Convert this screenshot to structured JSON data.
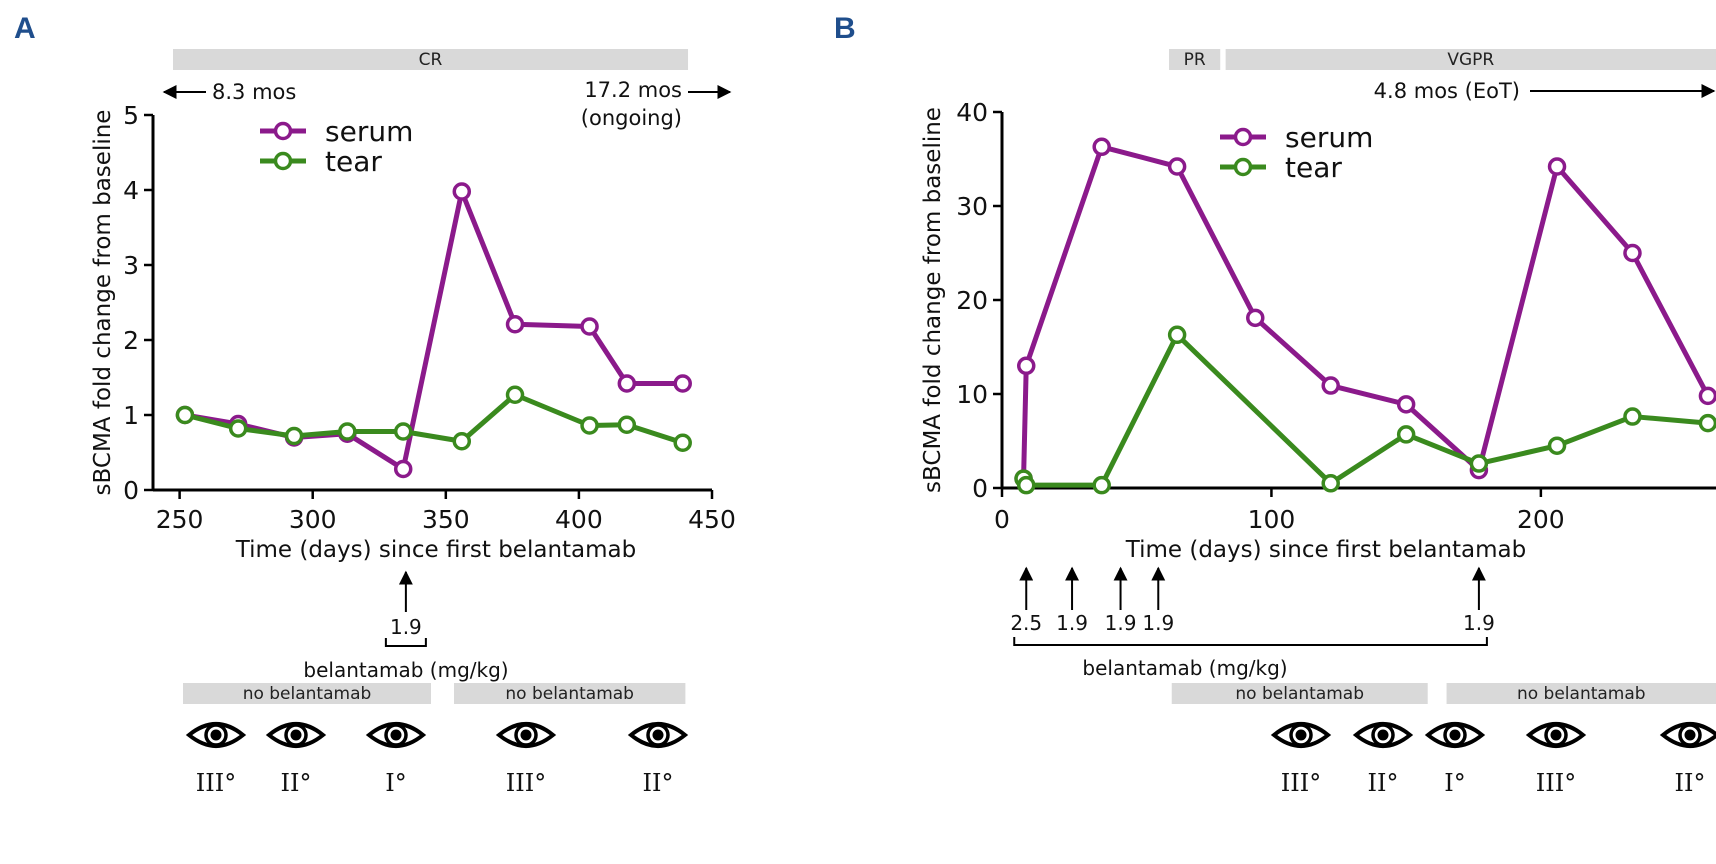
{
  "colors": {
    "serum": "#8b1a8b",
    "tear": "#3a8a1e",
    "panel_letter": "#1f4e8c",
    "bar": "#d9d9d9"
  },
  "chart_data": [
    {
      "panel": "A",
      "type": "line",
      "xlabel": "Time (days) since first belantamab",
      "ylabel": "sBCMA fold change from baseline",
      "xlim": [
        240,
        450
      ],
      "ylim": [
        0,
        5
      ],
      "xticks": [
        250,
        300,
        350,
        400,
        450
      ],
      "yticks": [
        0,
        1,
        2,
        3,
        4,
        5
      ],
      "legend": "top-left",
      "grid": false,
      "series": [
        {
          "name": "serum",
          "x": [
            252,
            272,
            293,
            313,
            334,
            356,
            376,
            404,
            418,
            439
          ],
          "values": [
            1.0,
            0.88,
            0.7,
            0.75,
            0.28,
            3.98,
            2.21,
            2.18,
            1.42,
            1.42
          ]
        },
        {
          "name": "tear",
          "x": [
            252,
            272,
            293,
            313,
            334,
            356,
            376,
            404,
            418,
            439
          ],
          "values": [
            1.0,
            0.82,
            0.72,
            0.78,
            0.78,
            0.65,
            1.27,
            0.86,
            0.87,
            0.63
          ]
        }
      ],
      "response_bars": [
        {
          "label": "CR",
          "start": 240,
          "end": 441
        }
      ],
      "left_note": "8.3 mos",
      "right_note": [
        "17.2 mos",
        "(ongoing)"
      ],
      "doses": [
        {
          "day": 335,
          "label": "1.9"
        }
      ],
      "dose_caption": "belantamab (mg/kg)",
      "no_belantamab_bars": [
        {
          "label": "no belantamab",
          "start": 240,
          "end": 325
        },
        {
          "label": "no belantamab",
          "start": 331,
          "end": 440
        }
      ],
      "eye_grades": [
        {
          "day": 257,
          "grade": "III°"
        },
        {
          "day": 284,
          "grade": "II°"
        },
        {
          "day": 318,
          "grade": "I°"
        },
        {
          "day": 367,
          "grade": "III°"
        },
        {
          "day": 413,
          "grade": "II°"
        }
      ]
    },
    {
      "panel": "B",
      "type": "line",
      "xlabel": "Time (days) since first belantamab",
      "ylabel": "sBCMA fold change from baseline",
      "xlim": [
        0,
        265
      ],
      "ylim": [
        0,
        40
      ],
      "xticks": [
        0,
        100,
        200
      ],
      "yticks": [
        0,
        10,
        20,
        30,
        40
      ],
      "legend": "top-right",
      "grid": false,
      "series": [
        {
          "name": "serum",
          "x": [
            8,
            9,
            37,
            65,
            94,
            122,
            150,
            177,
            206,
            234,
            262
          ],
          "values": [
            1.0,
            13.0,
            36.3,
            34.2,
            18.1,
            10.9,
            8.9,
            1.9,
            34.2,
            25.0,
            9.8
          ]
        },
        {
          "name": "tear",
          "x": [
            8,
            9,
            37,
            65,
            122,
            150,
            177,
            206,
            234,
            262
          ],
          "values": [
            1.0,
            0.3,
            0.3,
            16.3,
            0.5,
            5.7,
            2.6,
            4.5,
            7.6,
            6.9
          ]
        }
      ],
      "response_bars": [
        {
          "label": "PR",
          "start": 62,
          "end": 81
        },
        {
          "label": "VGPR",
          "start": 83,
          "end": 270
        }
      ],
      "right_note": [
        "4.8 mos (EoT)"
      ],
      "doses": [
        {
          "day": 9,
          "label": "2.5"
        },
        {
          "day": 26,
          "label": "1.9"
        },
        {
          "day": 44,
          "label": "1.9"
        },
        {
          "day": 58,
          "label": "1.9"
        },
        {
          "day": 177,
          "label": "1.9"
        }
      ],
      "dose_caption": "belantamab (mg/kg)",
      "no_belantamab_bars": [
        {
          "label": "no belantamab",
          "start": 63,
          "end": 158
        },
        {
          "label": "no belantamab",
          "start": 165,
          "end": 270
        }
      ],
      "eye_grades": [
        {
          "day": 74,
          "grade": "III°"
        },
        {
          "day": 102,
          "grade": "II°"
        },
        {
          "day": 128,
          "grade": "I°"
        },
        {
          "day": 160,
          "grade": "III°"
        },
        {
          "day": 205,
          "grade": "II°"
        }
      ]
    }
  ]
}
